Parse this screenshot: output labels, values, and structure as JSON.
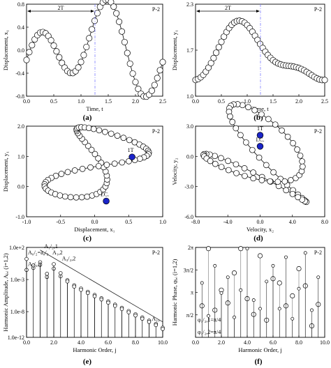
{
  "figure": {
    "panels": [
      {
        "id": "a",
        "label": "(a)"
      },
      {
        "id": "b",
        "label": "(b)"
      },
      {
        "id": "c",
        "label": "(c)"
      },
      {
        "id": "d",
        "label": "(d)"
      },
      {
        "id": "e",
        "label": "(e)"
      },
      {
        "id": "f",
        "label": "(f)"
      }
    ]
  },
  "chart_data": [
    {
      "id": "a",
      "type": "line",
      "tag": "P-2",
      "xlabel": "Time, t",
      "ylabel": "Displacement, x₁",
      "xlim": [
        0,
        2.5
      ],
      "ylim": [
        -0.8,
        0.8
      ],
      "xticks": [
        "0.0",
        "0.5",
        "1.0",
        "1.5",
        "2.0",
        "2.5"
      ],
      "yticks": [
        "-0.8",
        "-0.4",
        "0.0",
        "0.4",
        "0.8"
      ],
      "period_marker": {
        "label": "2T",
        "x_start": 0,
        "x_end": 1.2566
      },
      "series": [
        {
          "harmonics": {
            "mean": 0.0,
            "cos": [
              [
                2.5,
                -0.35
              ],
              [
                5.0,
                0.18
              ]
            ],
            "sin": [
              [
                2.5,
                0.0
              ],
              [
                5.0,
                0.56
              ]
            ]
          }
        }
      ]
    },
    {
      "id": "b",
      "type": "line",
      "tag": "P-2",
      "xlabel": "Time, t",
      "ylabel": "Displacement, y₁",
      "xlim": [
        0,
        2.5
      ],
      "ylim": [
        1.0,
        2.3
      ],
      "xticks": [
        "0.0",
        "0.5",
        "1.0",
        "1.5",
        "2.0",
        "2.5"
      ],
      "yticks": [
        "1.0",
        "1.7",
        "2.3"
      ],
      "period_marker": {
        "label": "2T",
        "x_start": 0,
        "x_end": 1.2566
      },
      "series": [
        {
          "harmonics": {
            "mean": 1.58,
            "cos": [
              [
                2.5,
                -0.25
              ],
              [
                5.0,
                -0.1
              ]
            ],
            "sin": [
              [
                2.5,
                0.26
              ],
              [
                5.0,
                -0.1
              ]
            ]
          }
        }
      ]
    },
    {
      "id": "c",
      "type": "line",
      "tag": "P-2",
      "xlabel": "Displacement, x₁",
      "ylabel": "Displacement, y₁",
      "xlim": [
        -1.0,
        1.0
      ],
      "ylim": [
        -1.0,
        2.0
      ],
      "xticks": [
        "-1.0",
        "-0.5",
        "0.0",
        "0.5",
        "1.0"
      ],
      "yticks": [
        "-1.0",
        "0.0",
        "1.0",
        "2.0"
      ],
      "series": [
        {
          "x": {
            "mean": 0.0,
            "cos": [
              [
                1,
                -0.39
              ],
              [
                2,
                0.12
              ]
            ],
            "sin": [
              [
                1,
                0.0
              ],
              [
                2,
                0.46
              ]
            ]
          },
          "y": {
            "mean": 0.8,
            "cos": [
              [
                1,
                -0.95
              ],
              [
                2,
                -0.21
              ]
            ],
            "sin": [
              [
                1,
                0.4
              ],
              [
                2,
                -0.21
              ]
            ]
          }
        }
      ],
      "points": [
        {
          "label": "1T",
          "x": 0.55,
          "y": 0.98
        },
        {
          "label": "I.C.",
          "x": 0.17,
          "y": -0.48
        }
      ]
    },
    {
      "id": "d",
      "type": "line",
      "tag": "P-2",
      "xlabel": "Velocity, x₂",
      "ylabel": "Velocity, y₂",
      "xlim": [
        -8.0,
        8.0
      ],
      "ylim": [
        -6.0,
        3.0
      ],
      "xticks": [
        "-8.0",
        "-4.0",
        "0.0",
        "4.0",
        "8.0"
      ],
      "yticks": [
        "-6.0",
        "-3.0",
        "0.0",
        "3.0"
      ],
      "series": [
        {
          "x": {
            "mean": 0.0,
            "cos": [
              [
                1,
                0.0
              ],
              [
                2,
                5.2
              ]
            ],
            "sin": [
              [
                1,
                1.6
              ],
              [
                2,
                -1.6
              ]
            ]
          },
          "y": {
            "mean": -0.3,
            "cos": [
              [
                1,
                1.9
              ],
              [
                2,
                -2.1
              ]
            ],
            "sin": [
              [
                1,
                1.9
              ],
              [
                2,
                2.1
              ]
            ]
          }
        }
      ],
      "points": [
        {
          "label": "1T",
          "x": 0.0,
          "y": 2.1
        },
        {
          "label": "I.C.",
          "x": 0.0,
          "y": 1.0
        }
      ]
    },
    {
      "id": "e",
      "type": "scatter",
      "tag": "P-2",
      "xlabel": "Harmonic Order, j",
      "ylabel": "Harmonic Amplitude, Aⱼ,ᵢ (i=1,2)",
      "xlim": [
        0,
        10
      ],
      "ylim_log10": [
        -12,
        2
      ],
      "xticks": [
        "0.0",
        "2.0",
        "4.0",
        "6.0",
        "8.0",
        "10.0"
      ],
      "yticks": [
        "1.0e-12",
        "1.0e-8",
        "1.0e-3",
        "1.0e+2"
      ],
      "annotations": [
        "A₀/₂=a₀/₂",
        "A₁/₂,1",
        "A₁,2",
        "A₃/₂,2",
        "A₀/₂=a₀/₂",
        "A₁/₂,1",
        "A₁₀"
      ],
      "series": [
        {
          "name": "x₁",
          "j": [
            0,
            0.5,
            1,
            1.5,
            2,
            2.5,
            3,
            3.5,
            4,
            4.5,
            5,
            5.5,
            6,
            6.5,
            7,
            7.5,
            8,
            8.5,
            9,
            9.5,
            10
          ],
          "log10_amplitude": [
            -1.5,
            -1.2,
            -0.7,
            -2.6,
            -1.3,
            -2.5,
            -3.1,
            -3.9,
            -4.4,
            -4.9,
            -5.4,
            -5.9,
            -6.4,
            -6.9,
            -7.4,
            -7.9,
            -8.4,
            -8.9,
            -9.4,
            -9.9,
            -10.5
          ]
        },
        {
          "name": "y₁",
          "j": [
            0,
            0.5,
            1,
            1.5,
            2,
            2.5,
            3,
            3.5,
            4,
            4.5,
            5,
            5.5,
            6,
            6.5,
            7,
            7.5,
            8,
            8.5,
            9,
            9.5,
            10
          ],
          "log10_amplitude": [
            0.2,
            -0.8,
            -0.3,
            -2.1,
            -0.6,
            -2.0,
            -3.3,
            -4.1,
            -4.6,
            -5.1,
            -5.6,
            -6.1,
            -6.6,
            -7.1,
            -7.6,
            -8.1,
            -8.6,
            -9.1,
            -9.6,
            -10.1,
            -10.7
          ]
        }
      ]
    },
    {
      "id": "f",
      "type": "scatter",
      "tag": "P-2",
      "xlabel": "Harmonic Order, j",
      "ylabel": "Harmonic Phase, φⱼ,ᵢ (i=1,2)",
      "xlim": [
        0,
        10
      ],
      "ylim": [
        0,
        6.2832
      ],
      "xticks": [
        "0.0",
        "2.0",
        "4.0",
        "6.0",
        "8.0",
        "10.0"
      ],
      "yticks": [
        "2π",
        "3π/2",
        "π",
        "π/2"
      ],
      "annotations": [
        "φ₁/₂,1=π/4",
        "φ₁/₂,2=π/4"
      ],
      "series": [
        {
          "name": "x₁",
          "j": [
            0.5,
            1,
            1.5,
            2,
            2.5,
            3,
            3.5,
            4,
            4.5,
            5,
            5.5,
            6,
            6.5,
            7,
            7.5,
            8,
            8.5,
            9,
            9.5
          ],
          "phase": [
            2.2,
            6.2,
            1.9,
            3.3,
            2.4,
            4.5,
            6.2,
            2.7,
            1.6,
            5.7,
            1.2,
            4.1,
            3.8,
            2.2,
            2.9,
            4.8,
            3.6,
            0.8,
            2.3
          ]
        },
        {
          "name": "y₁",
          "j": [
            0.5,
            1,
            1.5,
            2,
            2.5,
            3,
            3.5,
            4,
            4.5,
            5,
            5.5,
            6,
            6.5,
            7,
            7.5,
            8,
            8.5,
            9,
            9.5
          ],
          "phase": [
            3.8,
            1.5,
            5.0,
            3.1,
            4.2,
            1.4,
            3.3,
            6.2,
            2.6,
            2.0,
            3.9,
            5.0,
            2.0,
            5.6,
            1.3,
            3.4,
            5.9,
            1.9,
            4.2
          ]
        }
      ]
    }
  ]
}
